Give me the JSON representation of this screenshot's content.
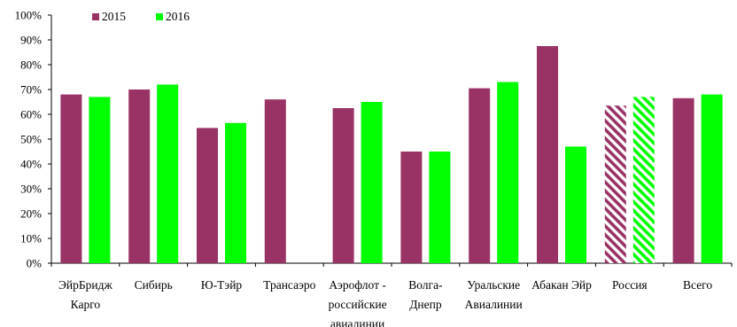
{
  "chart_data": {
    "type": "bar",
    "categories": [
      [
        "ЭйрБридж",
        "Карго"
      ],
      [
        "Сибирь"
      ],
      [
        "Ю-Тэйр"
      ],
      [
        "Трансаэро"
      ],
      [
        "Аэрофлот -",
        "российские",
        "авиалинии"
      ],
      [
        "Волга-",
        "Днепр"
      ],
      [
        "Уральские",
        "Авиалинии"
      ],
      [
        "Абакан Эйр"
      ],
      [
        "Россия"
      ],
      [
        "Всего"
      ]
    ],
    "series": [
      {
        "name": "2015",
        "color": "#993366",
        "values": [
          68,
          70,
          54.5,
          66,
          62.5,
          45,
          70.5,
          87.5,
          63.5,
          66.5
        ]
      },
      {
        "name": "2016",
        "color": "#00ff00",
        "values": [
          67,
          72,
          56.5,
          null,
          65,
          45,
          73,
          47,
          67,
          68
        ]
      }
    ],
    "hatched_categories": [
      "Россия"
    ],
    "ylim": [
      0,
      100
    ],
    "yticks": [
      0,
      10,
      20,
      30,
      40,
      50,
      60,
      70,
      80,
      90,
      100
    ],
    "ytick_suffix": "%",
    "legend_position": "top-left",
    "grid": false,
    "title": "",
    "xlabel": "",
    "ylabel": ""
  }
}
